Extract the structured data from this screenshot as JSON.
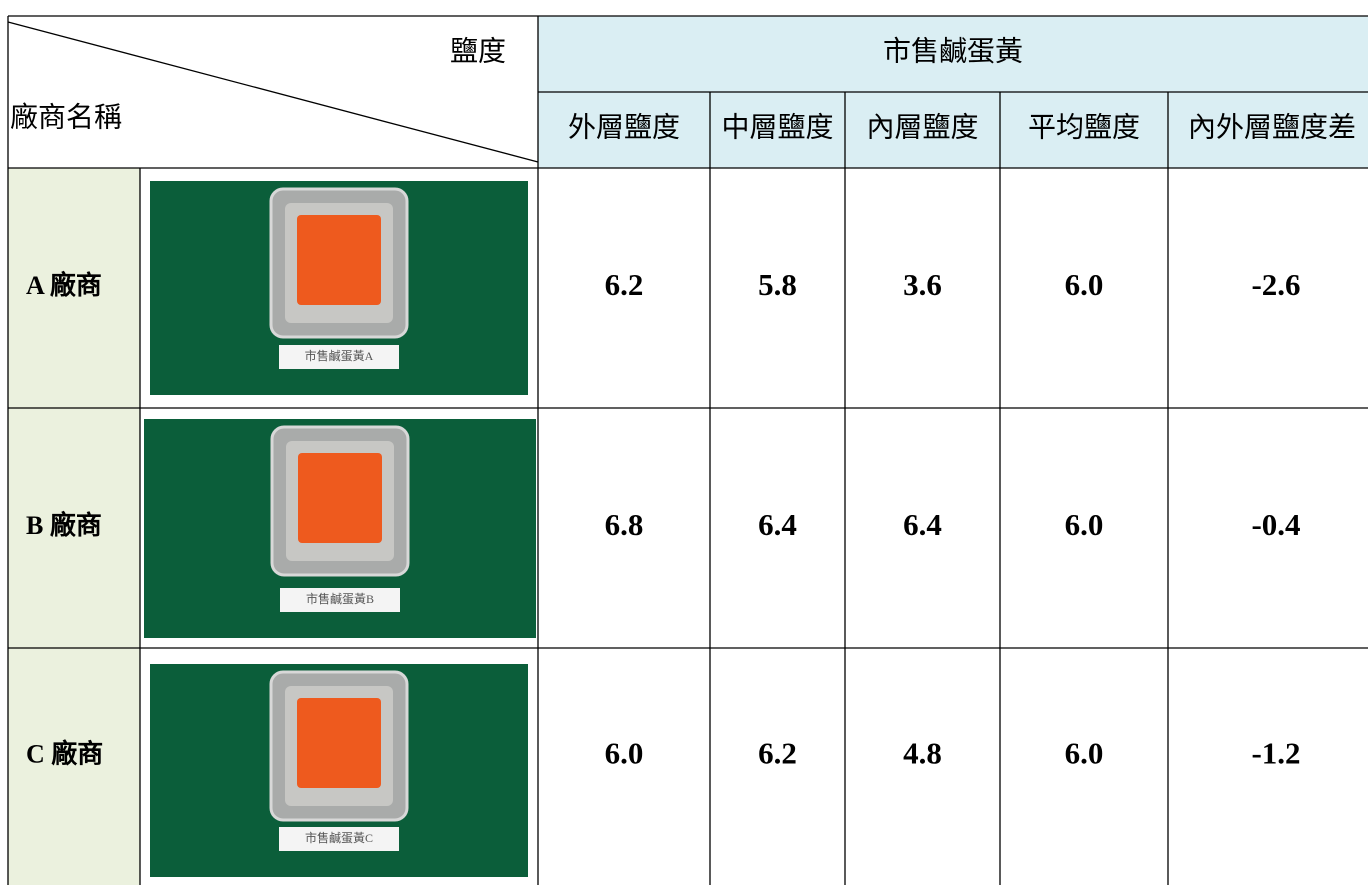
{
  "table": {
    "corner": {
      "top": "鹽度",
      "bottom": "廠商名稱"
    },
    "group_header": "市售鹹蛋黃",
    "columns": [
      "外層鹽度",
      "中層鹽度",
      "內層鹽度",
      "平均鹽度",
      "內外層鹽度差"
    ],
    "rows": [
      {
        "vendor": "A 廠商",
        "photo_label": "市售鹹蛋黃A",
        "values": [
          "6.2",
          "5.8",
          "3.6",
          "6.0",
          "-2.6"
        ]
      },
      {
        "vendor": "B 廠商",
        "photo_label": "市售鹹蛋黃B",
        "values": [
          "6.8",
          "6.4",
          "6.4",
          "6.0",
          "-0.4"
        ]
      },
      {
        "vendor": "C 廠商",
        "photo_label": "市售鹹蛋黃C",
        "values": [
          "6.0",
          "6.2",
          "4.8",
          "6.0",
          "-1.2"
        ]
      }
    ]
  }
}
